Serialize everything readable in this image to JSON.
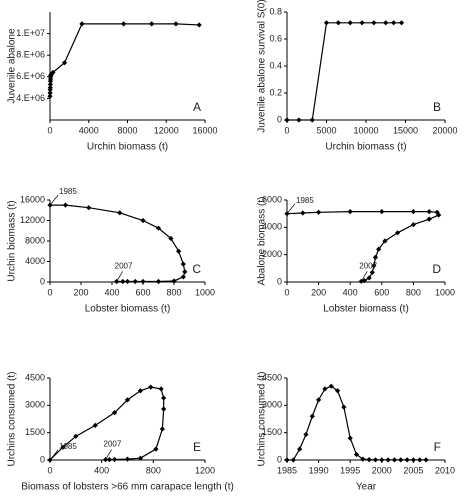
{
  "chart_data": [
    {
      "type": "line",
      "panel_label": "A",
      "x_label": "Urchin biomass (t)",
      "y_label": "Juvenile abalone",
      "x": [
        0,
        10,
        20,
        30,
        40,
        50,
        60,
        70,
        80,
        100,
        300,
        1500,
        3300,
        7600,
        10500,
        13000,
        15400
      ],
      "values": [
        4200000,
        4500000,
        4800000,
        5000000,
        5300000,
        5600000,
        5800000,
        6000000,
        6100000,
        6200000,
        6400000,
        7300000,
        10900000,
        10900000,
        10900000,
        10900000,
        10800000
      ],
      "xlim": [
        0,
        16000
      ],
      "xticks": [
        0,
        4000,
        8000,
        12000,
        16000
      ],
      "ylim": [
        2000000,
        12000000
      ],
      "yticks": [
        {
          "value": 4000000,
          "label": "4.E+06"
        },
        {
          "value": 6000000,
          "label": "6.E+06"
        },
        {
          "value": 8000000,
          "label": "8.E+06"
        },
        {
          "value": 10000000,
          "label": "1.E+07"
        }
      ],
      "color": "#000000"
    },
    {
      "type": "line",
      "panel_label": "B",
      "x_label": "Urchin biomass (t)",
      "y_label": "Juvenile abalone survival S(0)",
      "x": [
        0,
        1500,
        3200,
        5000,
        6500,
        8000,
        9500,
        11000,
        12500,
        13500,
        14500
      ],
      "values": [
        0,
        0,
        0,
        0.72,
        0.72,
        0.72,
        0.72,
        0.72,
        0.72,
        0.72,
        0.72
      ],
      "xlim": [
        0,
        20000
      ],
      "xticks": [
        0,
        5000,
        10000,
        15000,
        20000
      ],
      "ylim": [
        0,
        0.8
      ],
      "yticks": [
        0,
        0.2,
        0.4,
        0.6,
        0.8
      ],
      "color": "#000000"
    },
    {
      "type": "line",
      "panel_label": "C",
      "x_label": "Lobster biomass (t)",
      "y_label": "Urchin biomass (t)",
      "annotations": [
        "1985",
        "2007"
      ],
      "x": [
        0,
        100,
        250,
        450,
        600,
        700,
        780,
        830,
        860,
        870,
        860,
        800,
        700,
        600,
        550,
        500,
        470,
        430
      ],
      "values": [
        15000,
        15000,
        14500,
        13500,
        12000,
        10500,
        8500,
        6000,
        3500,
        2000,
        1000,
        200,
        100,
        100,
        100,
        100,
        100,
        100
      ],
      "xlim": [
        0,
        1000
      ],
      "xticks": [
        0,
        200,
        400,
        600,
        800,
        1000
      ],
      "ylim": [
        0,
        16000
      ],
      "yticks": [
        0,
        4000,
        8000,
        12000,
        16000
      ],
      "color": "#000000"
    },
    {
      "type": "line",
      "panel_label": "D",
      "x_label": "Lobster biomass (t)",
      "y_label": "Abalone biomass (t)",
      "annotations": [
        "1985",
        "2007"
      ],
      "x": [
        0,
        100,
        200,
        400,
        600,
        800,
        900,
        950,
        960,
        900,
        800,
        700,
        620,
        580,
        560,
        550,
        540,
        520,
        490,
        470
      ],
      "values": [
        5000,
        5050,
        5100,
        5150,
        5150,
        5150,
        5150,
        5100,
        4900,
        4600,
        4200,
        3600,
        3000,
        2400,
        1800,
        1200,
        700,
        300,
        100,
        50
      ],
      "xlim": [
        0,
        1000
      ],
      "xticks": [
        0,
        200,
        400,
        600,
        800,
        1000
      ],
      "ylim": [
        0,
        6000
      ],
      "yticks": [
        0,
        2000,
        4000,
        6000
      ],
      "color": "#000000"
    },
    {
      "type": "line",
      "panel_label": "E",
      "x_label": "Biomass of lobsters >66 mm carapace length (t)",
      "y_label": "Urchins  consumed (t)",
      "annotations": [
        "1985",
        "2007"
      ],
      "x": [
        0,
        100,
        200,
        350,
        500,
        600,
        700,
        780,
        860,
        880,
        880,
        870,
        820,
        700,
        600,
        500,
        460,
        430
      ],
      "values": [
        0,
        700,
        1300,
        1900,
        2600,
        3300,
        3800,
        4000,
        3900,
        3400,
        2800,
        1700,
        600,
        100,
        50,
        30,
        20,
        20
      ],
      "xlim": [
        0,
        1200
      ],
      "xticks": [
        0,
        400,
        800,
        1200
      ],
      "ylim": [
        0,
        4500
      ],
      "yticks": [
        0,
        1500,
        3000,
        4500
      ],
      "color": "#000000"
    },
    {
      "type": "line",
      "panel_label": "F",
      "x_label": "Year",
      "y_label": "Urchins  consumed (t)",
      "x": [
        1985,
        1986,
        1987,
        1988,
        1989,
        1990,
        1991,
        1992,
        1993,
        1994,
        1995,
        1996,
        1997,
        1998,
        1999,
        2000,
        2001,
        2002,
        2003,
        2004,
        2005,
        2006,
        2007
      ],
      "values": [
        0,
        0,
        600,
        1400,
        2400,
        3300,
        3900,
        4050,
        3800,
        2900,
        1200,
        300,
        50,
        20,
        10,
        5,
        5,
        5,
        5,
        5,
        5,
        5,
        5
      ],
      "xlim": [
        1985,
        2010
      ],
      "xticks": [
        1985,
        1990,
        1995,
        2000,
        2005,
        2010
      ],
      "ylim": [
        0,
        4500
      ],
      "yticks": [
        0,
        1500,
        3000,
        4500
      ],
      "color": "#000000"
    }
  ]
}
